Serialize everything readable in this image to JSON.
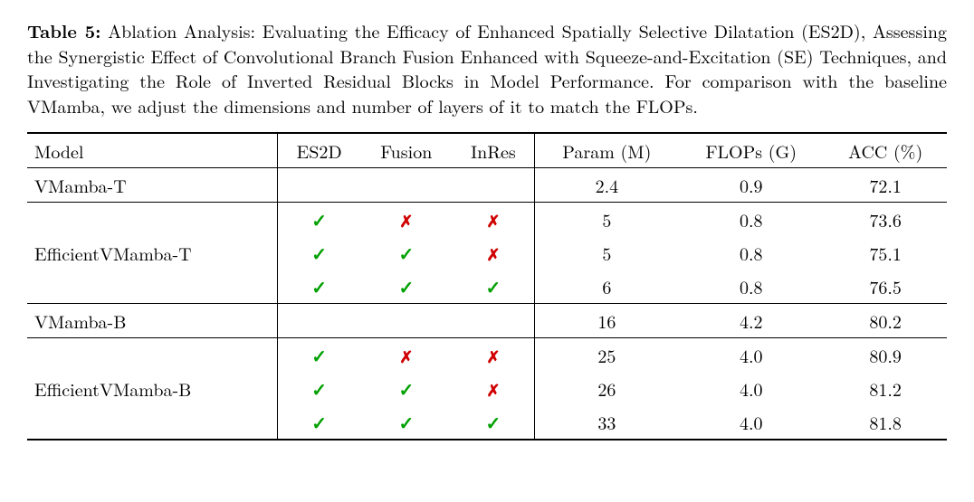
{
  "caption": {
    "label": "Table 5:",
    "text": " Ablation Analysis: Evaluating the Efficacy of Enhanced Spatially Selective Dilatation (ES2D), Assessing the Synergistic Effect of Convolutional Branch Fusion Enhanced with Squeeze-and-Excitation (SE) Techniques, and Investigating the Role of Inverted Residual Blocks in Model Performance. For comparison with the baseline VMamba, we adjust the dimensions and number of layers of it to match the FLOPs."
  },
  "table": {
    "columns": [
      "Model",
      "ES2D",
      "Fusion",
      "InRes",
      "Param (M)",
      "FLOPs (G)",
      "ACC (%)"
    ],
    "groups": [
      {
        "baseline": {
          "model": "VMamba-T",
          "param": "2.4",
          "flops": "0.9",
          "acc": "72.1"
        },
        "variant_label": "EfficientVMamba-T",
        "rows": [
          {
            "es2d": true,
            "fusion": false,
            "inres": false,
            "param": "5",
            "flops": "0.8",
            "acc": "73.6"
          },
          {
            "es2d": true,
            "fusion": true,
            "inres": false,
            "param": "5",
            "flops": "0.8",
            "acc": "75.1"
          },
          {
            "es2d": true,
            "fusion": true,
            "inres": true,
            "param": "6",
            "flops": "0.8",
            "acc": "76.5"
          }
        ]
      },
      {
        "baseline": {
          "model": "VMamba-B",
          "param": "16",
          "flops": "4.2",
          "acc": "80.2"
        },
        "variant_label": "EfficientVMamba-B",
        "rows": [
          {
            "es2d": true,
            "fusion": false,
            "inres": false,
            "param": "25",
            "flops": "4.0",
            "acc": "80.9"
          },
          {
            "es2d": true,
            "fusion": true,
            "inres": false,
            "param": "26",
            "flops": "4.0",
            "acc": "81.2"
          },
          {
            "es2d": true,
            "fusion": true,
            "inres": true,
            "param": "33",
            "flops": "4.0",
            "acc": "81.8"
          }
        ]
      }
    ],
    "symbols": {
      "check": "✓",
      "cross": "✗"
    },
    "colors": {
      "check": "#00a000",
      "cross": "#d00000"
    }
  }
}
